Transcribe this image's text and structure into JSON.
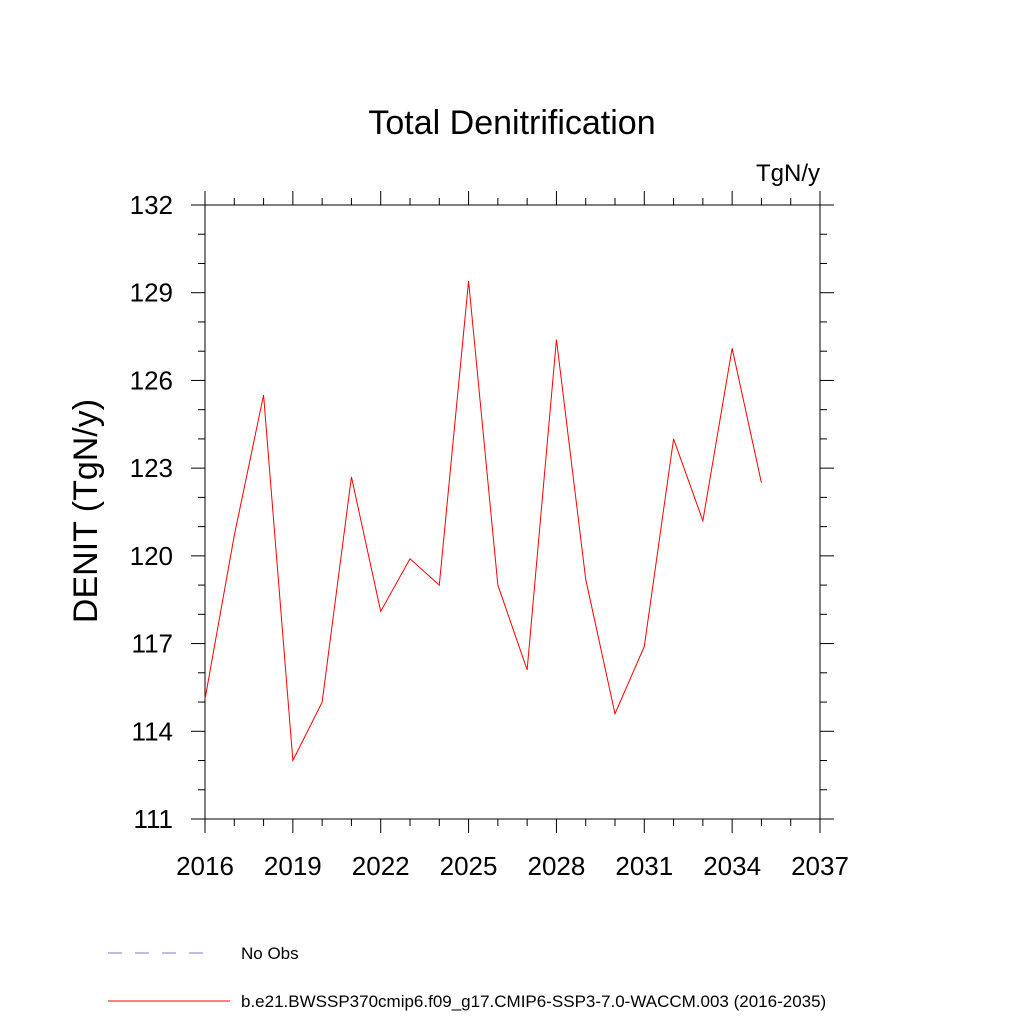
{
  "chart_data": {
    "type": "line",
    "title": "Total Denitrification",
    "units_label": "TgN/y",
    "ylabel": "DENIT  (TgN/y)",
    "xlabel": "",
    "xlim": [
      2016,
      2037
    ],
    "ylim": [
      111,
      132
    ],
    "x_ticks": [
      2016,
      2019,
      2022,
      2025,
      2028,
      2031,
      2034,
      2037
    ],
    "y_ticks": [
      111,
      114,
      117,
      120,
      123,
      126,
      129,
      132
    ],
    "x_tick_labels": [
      "2016",
      "2019",
      "2022",
      "2025",
      "2028",
      "2031",
      "2034",
      "2037"
    ],
    "y_tick_labels": [
      "111",
      "114",
      "117",
      "120",
      "123",
      "126",
      "129",
      "132"
    ],
    "grid": false,
    "legend_position": "bottom",
    "series": [
      {
        "name": "b.e21.BWSSP370cmip6.f09_g17.CMIP6-SSP3-7.0-WACCM.003 (2016-2035)",
        "color": "#ff0000",
        "dash": "solid",
        "x": [
          2016,
          2017,
          2018,
          2019,
          2020,
          2021,
          2022,
          2023,
          2024,
          2025,
          2026,
          2027,
          2028,
          2029,
          2030,
          2031,
          2032,
          2033,
          2034,
          2035
        ],
        "y": [
          115.1,
          120.7,
          125.5,
          113.0,
          115.0,
          122.7,
          118.1,
          119.9,
          119.0,
          129.4,
          119.0,
          116.1,
          127.4,
          119.2,
          114.6,
          116.9,
          124.0,
          121.2,
          127.1,
          122.5
        ]
      }
    ],
    "legend": [
      {
        "label": "No Obs",
        "color": "#7b7bcc",
        "dash": "dashed"
      },
      {
        "label": "b.e21.BWSSP370cmip6.f09_g17.CMIP6-SSP3-7.0-WACCM.003 (2016-2035)",
        "color": "#ff0000",
        "dash": "solid"
      }
    ]
  }
}
